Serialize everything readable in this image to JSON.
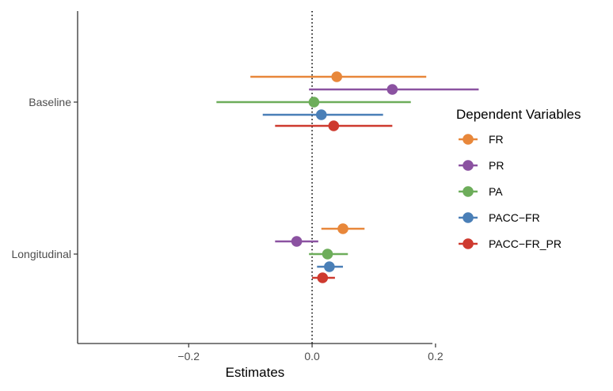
{
  "chart_data": {
    "type": "forest-plot",
    "xlabel": "Estimates",
    "ylabel": "",
    "xlim": [
      -0.38,
      0.195
    ],
    "x_ticks": [
      {
        "value": -0.2,
        "label": "−0.2"
      },
      {
        "value": 0.0,
        "label": "0.0"
      },
      {
        "value": 0.2,
        "label": "0.2"
      }
    ],
    "reference_line": 0,
    "grid": false,
    "categories": [
      "Baseline",
      "Longitudinal"
    ],
    "legend": {
      "title": "Dependent Variables",
      "position": "right"
    },
    "series": [
      {
        "name": "FR",
        "color": "#E8873A",
        "points": [
          {
            "category": "Baseline",
            "estimate": 0.04,
            "lower": -0.1,
            "upper": 0.185
          },
          {
            "category": "Longitudinal",
            "estimate": 0.05,
            "lower": 0.015,
            "upper": 0.085
          }
        ]
      },
      {
        "name": "PR",
        "color": "#8B52A1",
        "points": [
          {
            "category": "Baseline",
            "estimate": 0.13,
            "lower": -0.005,
            "upper": 0.27
          },
          {
            "category": "Longitudinal",
            "estimate": -0.025,
            "lower": -0.06,
            "upper": 0.01
          }
        ]
      },
      {
        "name": "PA",
        "color": "#6DAD5A",
        "points": [
          {
            "category": "Baseline",
            "estimate": 0.003,
            "lower": -0.155,
            "upper": 0.16
          },
          {
            "category": "Longitudinal",
            "estimate": 0.025,
            "lower": -0.005,
            "upper": 0.058
          }
        ]
      },
      {
        "name": "PACC−FR",
        "color": "#4A7FB7",
        "points": [
          {
            "category": "Baseline",
            "estimate": 0.015,
            "lower": -0.08,
            "upper": 0.115
          },
          {
            "category": "Longitudinal",
            "estimate": 0.028,
            "lower": 0.008,
            "upper": 0.05
          }
        ]
      },
      {
        "name": "PACC−FR_PR",
        "color": "#CE3A2F",
        "points": [
          {
            "category": "Baseline",
            "estimate": 0.035,
            "lower": -0.06,
            "upper": 0.13
          },
          {
            "category": "Longitudinal",
            "estimate": 0.017,
            "lower": 0.0,
            "upper": 0.037
          }
        ]
      }
    ]
  }
}
